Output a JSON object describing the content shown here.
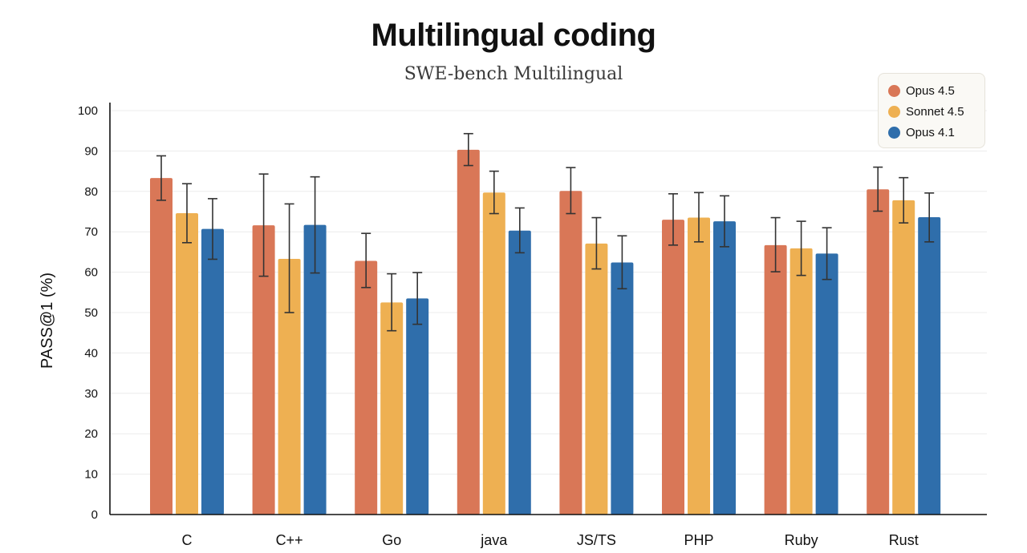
{
  "chart_data": {
    "type": "bar",
    "title": "Multilingual coding",
    "subtitle": "SWE-bench Multilingual",
    "xlabel": "",
    "ylabel": "PASS@1 (%)",
    "ylim": [
      0,
      100
    ],
    "yticks": [
      0,
      10,
      20,
      30,
      40,
      50,
      60,
      70,
      80,
      90,
      100
    ],
    "grid": true,
    "legend_position": "top-right",
    "categories": [
      "C",
      "C++",
      "Go",
      "java",
      "JS/TS",
      "PHP",
      "Ruby",
      "Rust"
    ],
    "series": [
      {
        "name": "Opus 4.5",
        "color": "#d97757",
        "values": [
          83.3,
          71.6,
          62.8,
          90.3,
          80.1,
          73.0,
          66.7,
          80.5
        ],
        "error_low": [
          77.8,
          59.0,
          56.2,
          86.4,
          74.5,
          66.7,
          60.1,
          75.1
        ],
        "error_high": [
          88.8,
          84.3,
          69.6,
          94.3,
          85.9,
          79.4,
          73.5,
          86.0
        ]
      },
      {
        "name": "Sonnet 4.5",
        "color": "#eeb052",
        "values": [
          74.6,
          63.3,
          52.5,
          79.7,
          67.1,
          73.5,
          65.9,
          77.8
        ],
        "error_low": [
          67.3,
          50.0,
          45.5,
          74.5,
          60.8,
          67.5,
          59.2,
          72.2
        ],
        "error_high": [
          81.9,
          76.9,
          59.6,
          85.0,
          73.5,
          79.7,
          72.6,
          83.4
        ]
      },
      {
        "name": "Opus 4.1",
        "color": "#2f6eab",
        "values": [
          70.7,
          71.7,
          53.5,
          70.3,
          62.4,
          72.6,
          64.6,
          73.6
        ],
        "error_low": [
          63.2,
          59.8,
          47.1,
          64.8,
          55.9,
          66.3,
          58.2,
          67.5
        ],
        "error_high": [
          78.2,
          83.6,
          59.9,
          75.9,
          69.0,
          78.9,
          71.0,
          79.6
        ]
      }
    ]
  }
}
